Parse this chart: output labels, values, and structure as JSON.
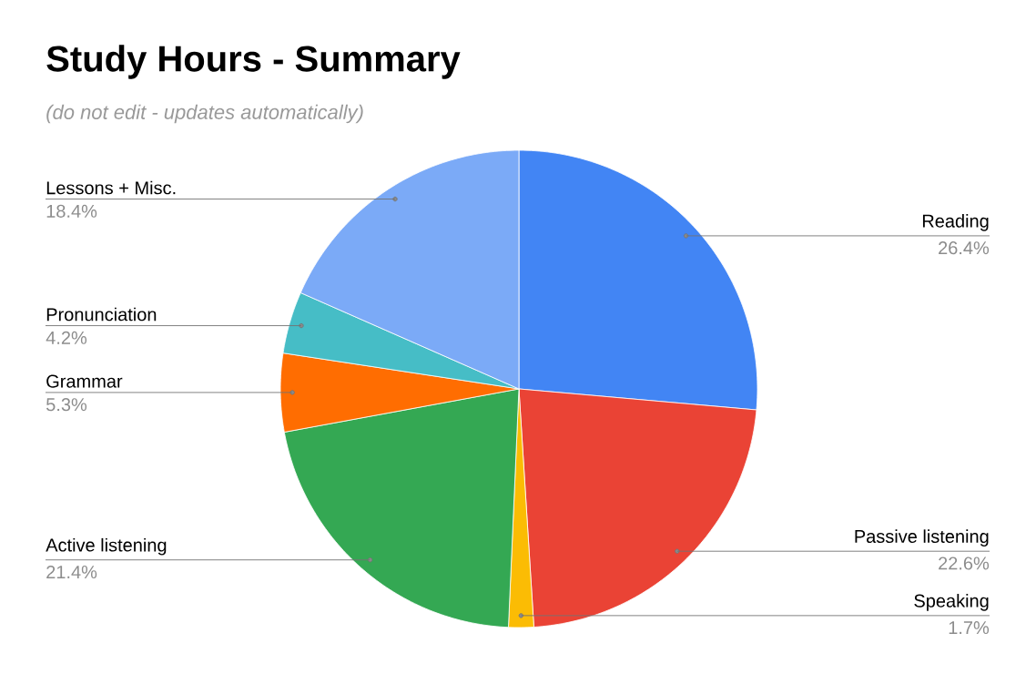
{
  "chart_data": {
    "type": "pie",
    "title": "Study Hours - Summary",
    "subtitle": "(do not edit - updates automatically)",
    "categories": [
      "Reading",
      "Passive listening",
      "Speaking",
      "Active listening",
      "Grammar",
      "Pronunciation",
      "Lessons + Misc."
    ],
    "values": [
      26.4,
      22.6,
      1.7,
      21.4,
      5.3,
      4.2,
      18.4
    ],
    "value_labels": [
      "26.4%",
      "22.6%",
      "1.7%",
      "21.4%",
      "5.3%",
      "4.2%",
      "18.4%"
    ],
    "colors": [
      "#4285f4",
      "#ea4335",
      "#fbbc04",
      "#34a853",
      "#ff6d01",
      "#46bdc6",
      "#7baaf7"
    ]
  }
}
